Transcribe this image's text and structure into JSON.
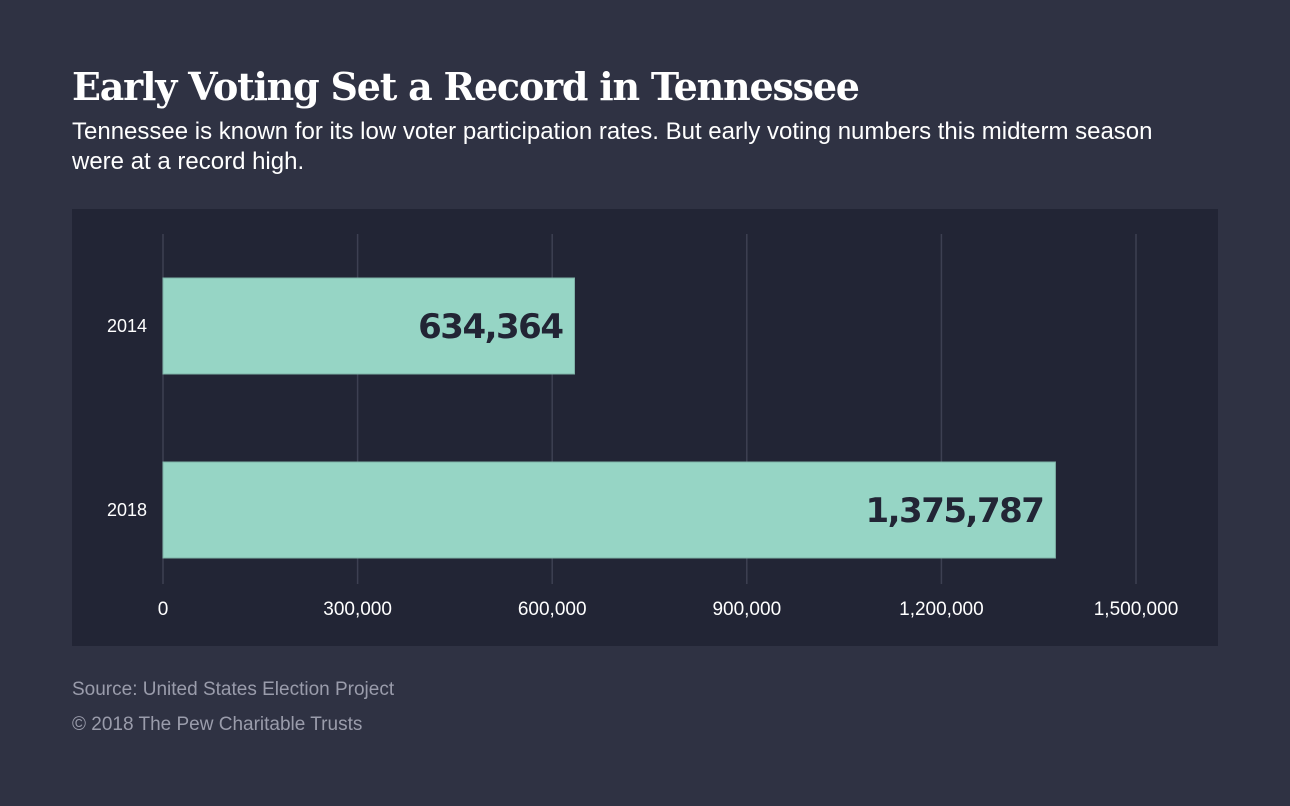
{
  "header": {
    "title": "Early Voting Set a Record in Tennessee",
    "subtitle": "Tennessee is known for its low voter participation rates. But early voting numbers this midterm season were at a record high."
  },
  "footer": {
    "source": "Source: United States Election Project",
    "copyright": "© 2018 The Pew Charitable Trusts"
  },
  "colors": {
    "background": "#2f3243",
    "panel": "#222535",
    "bar": "#96d5c5",
    "grid": "#3d4052",
    "bar_label": "#222535"
  },
  "chart_data": {
    "type": "bar",
    "orientation": "horizontal",
    "title": "Early Voting Set a Record in Tennessee",
    "subtitle": "Tennessee is known for its low voter participation rates. But early voting numbers this midterm season were at a record high.",
    "categories": [
      "2014",
      "2018"
    ],
    "values": [
      634364,
      1375787
    ],
    "value_labels": [
      "634,364",
      "1,375,787"
    ],
    "xlabel": "",
    "ylabel": "",
    "xlim": [
      0,
      1500000
    ],
    "ticks": [
      0,
      300000,
      600000,
      900000,
      1200000,
      1500000
    ],
    "tick_labels": [
      "0",
      "300,000",
      "600,000",
      "900,000",
      "1,200,000",
      "1,500,000"
    ],
    "grid": true,
    "legend": "none"
  }
}
